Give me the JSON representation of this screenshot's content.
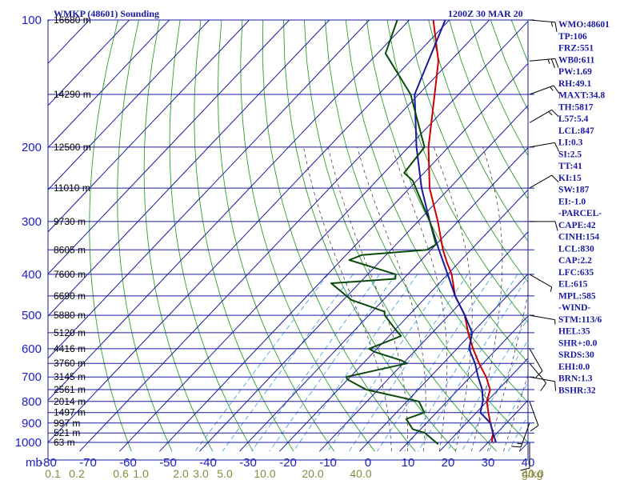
{
  "chart_data": {
    "type": "line",
    "title": "WMKP (48601) Sounding",
    "time": "1200Z 30 MAR 20",
    "pressure_unit_label": "mb",
    "mixing_ratio_unit_label": "g/kg",
    "pressure_ticks": [
      "100",
      "200",
      "300",
      "400",
      "500",
      "600",
      "700",
      "800",
      "900",
      "1000"
    ],
    "pressure_lines": [
      100,
      150,
      200,
      250,
      300,
      350,
      400,
      450,
      500,
      550,
      600,
      650,
      700,
      750,
      800,
      850,
      900,
      950,
      1000
    ],
    "temperature_ticks": [
      -80,
      -70,
      -60,
      -50,
      -40,
      -30,
      -20,
      -10,
      0,
      10,
      20,
      30,
      40
    ],
    "temperature_tick_labels": [
      "-80",
      "-70",
      "-60",
      "-50",
      "-40",
      "-30",
      "-20",
      "-10",
      "0",
      "10",
      "20",
      "30",
      "40"
    ],
    "xlim": [
      -80,
      40
    ],
    "ylim": [
      100,
      1050
    ],
    "mixing_ratio_labels": [
      {
        "label": "0.1",
        "t": -80
      },
      {
        "label": "0.2",
        "t": -74
      },
      {
        "label": "0.6",
        "t": -63
      },
      {
        "label": "1.0",
        "t": -58
      },
      {
        "label": "2.0",
        "t": -48
      },
      {
        "label": "3.0",
        "t": -43
      },
      {
        "label": "5.0",
        "t": -37
      },
      {
        "label": "10.0",
        "t": -27
      },
      {
        "label": "20.0",
        "t": -15
      },
      {
        "label": "40.0",
        "t": -3
      },
      {
        "label": "40.0",
        "t": 40
      }
    ],
    "height_labels": [
      {
        "p": 100,
        "label": "16680 m"
      },
      {
        "p": 150,
        "label": "14290 m"
      },
      {
        "p": 200,
        "label": "12500 m"
      },
      {
        "p": 250,
        "label": "11010 m"
      },
      {
        "p": 300,
        "label": "9730 m"
      },
      {
        "p": 350,
        "label": "8605 m"
      },
      {
        "p": 400,
        "label": "7600 m"
      },
      {
        "p": 450,
        "label": "6690 m"
      },
      {
        "p": 500,
        "label": "5880 m"
      },
      {
        "p": 550,
        "label": "5120 m"
      },
      {
        "p": 600,
        "label": "4416 m"
      },
      {
        "p": 650,
        "label": "3760 m"
      },
      {
        "p": 700,
        "label": "3145 m"
      },
      {
        "p": 750,
        "label": "2561 m"
      },
      {
        "p": 800,
        "label": "2014 m"
      },
      {
        "p": 850,
        "label": "1497 m"
      },
      {
        "p": 900,
        "label": "997 m"
      },
      {
        "p": 950,
        "label": "521 m"
      },
      {
        "p": 1000,
        "label": "63 m"
      }
    ],
    "series": [
      {
        "name": "",
        "color": "#cc0000",
        "points": [
          [
            100,
            -84
          ],
          [
            125,
            -73
          ],
          [
            150,
            -66
          ],
          [
            200,
            -55
          ],
          [
            250,
            -45
          ],
          [
            300,
            -35
          ],
          [
            350,
            -27
          ],
          [
            375,
            -23
          ],
          [
            400,
            -19
          ],
          [
            450,
            -13
          ],
          [
            500,
            -6
          ],
          [
            550,
            -1
          ],
          [
            600,
            4
          ],
          [
            650,
            9
          ],
          [
            700,
            14
          ],
          [
            750,
            18
          ],
          [
            800,
            20
          ],
          [
            850,
            23
          ],
          [
            900,
            26
          ],
          [
            950,
            29
          ],
          [
            1000,
            31
          ]
        ]
      },
      {
        "name": "",
        "color": "#1a1aa0",
        "points": [
          [
            100,
            -81
          ],
          [
            150,
            -71
          ],
          [
            200,
            -58
          ],
          [
            250,
            -47
          ],
          [
            300,
            -37
          ],
          [
            350,
            -28
          ],
          [
            400,
            -20
          ],
          [
            450,
            -13
          ],
          [
            500,
            -6
          ],
          [
            550,
            0
          ],
          [
            600,
            3
          ],
          [
            650,
            8
          ],
          [
            700,
            12
          ],
          [
            750,
            16
          ],
          [
            800,
            19
          ],
          [
            850,
            21
          ],
          [
            900,
            26
          ],
          [
            950,
            29
          ],
          [
            1000,
            32
          ]
        ]
      },
      {
        "name": "",
        "color": "#0a4a0a",
        "points": [
          [
            100,
            -93
          ],
          [
            120,
            -88
          ],
          [
            150,
            -72
          ],
          [
            200,
            -56
          ],
          [
            230,
            -55
          ],
          [
            240,
            -51
          ],
          [
            300,
            -37
          ],
          [
            340,
            -30
          ],
          [
            350,
            -31
          ],
          [
            360,
            -46
          ],
          [
            370,
            -48
          ],
          [
            400,
            -33
          ],
          [
            410,
            -32
          ],
          [
            420,
            -47
          ],
          [
            460,
            -38
          ],
          [
            490,
            -27
          ],
          [
            500,
            -26
          ],
          [
            540,
            -20
          ],
          [
            560,
            -17
          ],
          [
            600,
            -22
          ],
          [
            610,
            -20
          ],
          [
            640,
            -11
          ],
          [
            650,
            -9
          ],
          [
            700,
            -21
          ],
          [
            710,
            -20
          ],
          [
            750,
            -13
          ],
          [
            800,
            3
          ],
          [
            850,
            7
          ],
          [
            880,
            4
          ],
          [
            930,
            8
          ],
          [
            950,
            12
          ],
          [
            1000,
            17
          ],
          [
            1010,
            18
          ]
        ]
      }
    ],
    "wind_barbs": [
      {
        "p": 100,
        "dir": 95,
        "spd": 15
      },
      {
        "p": 125,
        "dir": 85,
        "spd": 25
      },
      {
        "p": 150,
        "dir": 70,
        "spd": 15
      },
      {
        "p": 175,
        "dir": 60,
        "spd": 15
      },
      {
        "p": 200,
        "dir": 80,
        "spd": 10
      },
      {
        "p": 250,
        "dir": 60,
        "spd": 10
      },
      {
        "p": 300,
        "dir": 90,
        "spd": 10
      },
      {
        "p": 400,
        "dir": 120,
        "spd": 5
      },
      {
        "p": 500,
        "dir": 100,
        "spd": 5
      },
      {
        "p": 600,
        "dir": 150,
        "spd": 10
      },
      {
        "p": 650,
        "dir": 140,
        "spd": 10
      },
      {
        "p": 700,
        "dir": 100,
        "spd": 10
      },
      {
        "p": 800,
        "dir": 160,
        "spd": 10
      },
      {
        "p": 900,
        "dir": 200,
        "spd": 15
      },
      {
        "p": 1000,
        "dir": 180,
        "spd": 10
      }
    ],
    "indices": [
      "WMO:48601",
      "TP:106",
      "FRZ:551",
      "WB0:611",
      "PW:1.69",
      "RH:49.1",
      "MAXT:34.8",
      "TH:5817",
      "L57:5.4",
      "LCL:847",
      "LI:0.3",
      "SI:2.5",
      "TT:41",
      "KI:15",
      "SW:187",
      "EI:-1.0",
      "-PARCEL-",
      "CAPE:42",
      "CINH:154",
      "LCL:830",
      "CAP:2.2",
      "LFC:635",
      "EL:615",
      "MPL:585",
      "-WIND-",
      "STM:113/6",
      "HEL:35",
      "SHR+:0.0",
      "SRDS:30",
      "EHI:0.0",
      "BRN:1.3",
      "BSHR:32"
    ],
    "colors": {
      "frame": "#1a1aa0",
      "isobar": "#1a1aa0",
      "isotherm": "#1a1aa0",
      "dry_adiabat": "#2ca02c",
      "moist_adiabat": "#444444",
      "mixing_ratio": "#3a9ad9"
    }
  }
}
